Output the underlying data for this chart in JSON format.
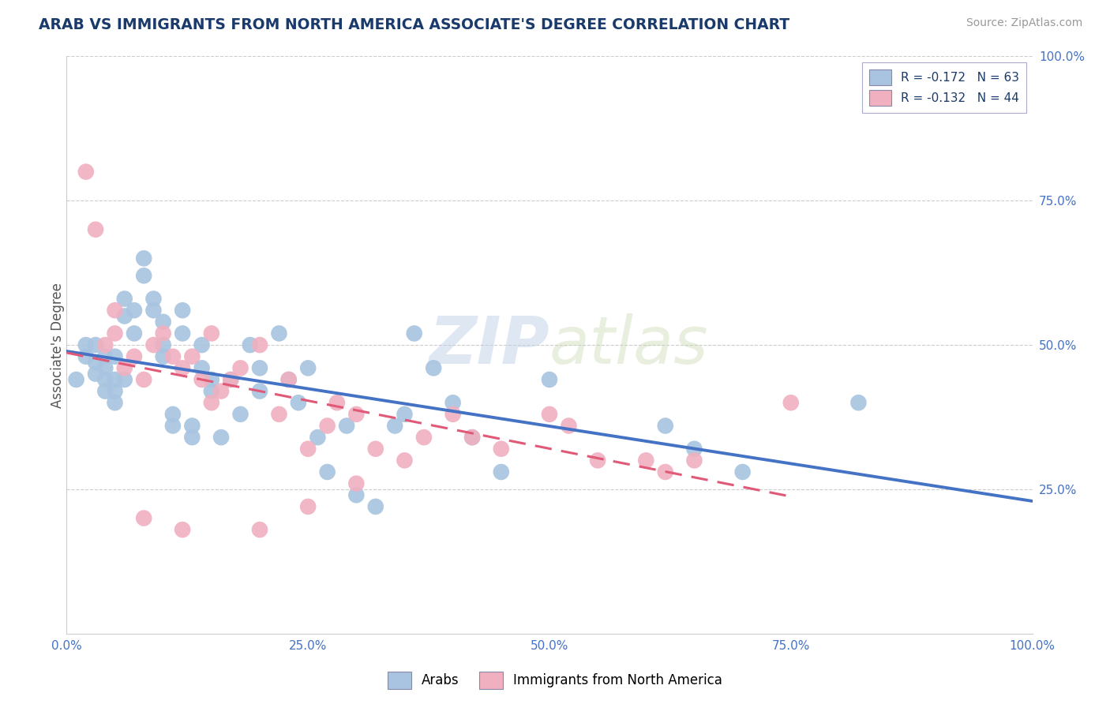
{
  "title": "ARAB VS IMMIGRANTS FROM NORTH AMERICA ASSOCIATE'S DEGREE CORRELATION CHART",
  "source": "Source: ZipAtlas.com",
  "ylabel": "Associate's Degree",
  "x_min": 0.0,
  "x_max": 1.0,
  "y_min": 0.0,
  "y_max": 1.0,
  "x_tick_labels": [
    "0.0%",
    "25.0%",
    "50.0%",
    "75.0%",
    "100.0%"
  ],
  "y_tick_labels_right": [
    "25.0%",
    "50.0%",
    "75.0%",
    "100.0%"
  ],
  "y_ticks_right": [
    0.25,
    0.5,
    0.75,
    1.0
  ],
  "blue_color": "#4472c4",
  "pink_color": "#e05a78",
  "scatter_blue_color": "#a8c4e0",
  "scatter_pink_color": "#f0b0c0",
  "watermark": "ZIPatlas",
  "blue_scatter_x": [
    0.01,
    0.02,
    0.02,
    0.03,
    0.03,
    0.03,
    0.04,
    0.04,
    0.04,
    0.04,
    0.05,
    0.05,
    0.05,
    0.05,
    0.06,
    0.06,
    0.06,
    0.07,
    0.07,
    0.08,
    0.08,
    0.09,
    0.09,
    0.1,
    0.1,
    0.1,
    0.11,
    0.11,
    0.12,
    0.12,
    0.13,
    0.13,
    0.14,
    0.14,
    0.15,
    0.15,
    0.16,
    0.17,
    0.18,
    0.19,
    0.2,
    0.2,
    0.22,
    0.23,
    0.24,
    0.25,
    0.26,
    0.27,
    0.29,
    0.3,
    0.32,
    0.34,
    0.35,
    0.36,
    0.38,
    0.4,
    0.42,
    0.45,
    0.5,
    0.62,
    0.65,
    0.7,
    0.82
  ],
  "blue_scatter_y": [
    0.44,
    0.48,
    0.5,
    0.45,
    0.47,
    0.5,
    0.42,
    0.44,
    0.46,
    0.48,
    0.4,
    0.42,
    0.44,
    0.48,
    0.55,
    0.58,
    0.44,
    0.52,
    0.56,
    0.62,
    0.65,
    0.56,
    0.58,
    0.48,
    0.5,
    0.54,
    0.36,
    0.38,
    0.52,
    0.56,
    0.34,
    0.36,
    0.5,
    0.46,
    0.42,
    0.44,
    0.34,
    0.44,
    0.38,
    0.5,
    0.46,
    0.42,
    0.52,
    0.44,
    0.4,
    0.46,
    0.34,
    0.28,
    0.36,
    0.24,
    0.22,
    0.36,
    0.38,
    0.52,
    0.46,
    0.4,
    0.34,
    0.28,
    0.44,
    0.36,
    0.32,
    0.28,
    0.4
  ],
  "pink_scatter_x": [
    0.02,
    0.03,
    0.04,
    0.05,
    0.05,
    0.06,
    0.07,
    0.08,
    0.09,
    0.1,
    0.11,
    0.12,
    0.13,
    0.14,
    0.15,
    0.15,
    0.16,
    0.17,
    0.18,
    0.2,
    0.22,
    0.23,
    0.25,
    0.27,
    0.28,
    0.3,
    0.3,
    0.32,
    0.35,
    0.37,
    0.4,
    0.42,
    0.45,
    0.5,
    0.52,
    0.55,
    0.6,
    0.62,
    0.65,
    0.75,
    0.08,
    0.12,
    0.2,
    0.25
  ],
  "pink_scatter_y": [
    0.8,
    0.7,
    0.5,
    0.52,
    0.56,
    0.46,
    0.48,
    0.44,
    0.5,
    0.52,
    0.48,
    0.46,
    0.48,
    0.44,
    0.4,
    0.52,
    0.42,
    0.44,
    0.46,
    0.5,
    0.38,
    0.44,
    0.32,
    0.36,
    0.4,
    0.38,
    0.26,
    0.32,
    0.3,
    0.34,
    0.38,
    0.34,
    0.32,
    0.38,
    0.36,
    0.3,
    0.3,
    0.28,
    0.3,
    0.4,
    0.2,
    0.18,
    0.18,
    0.22
  ]
}
